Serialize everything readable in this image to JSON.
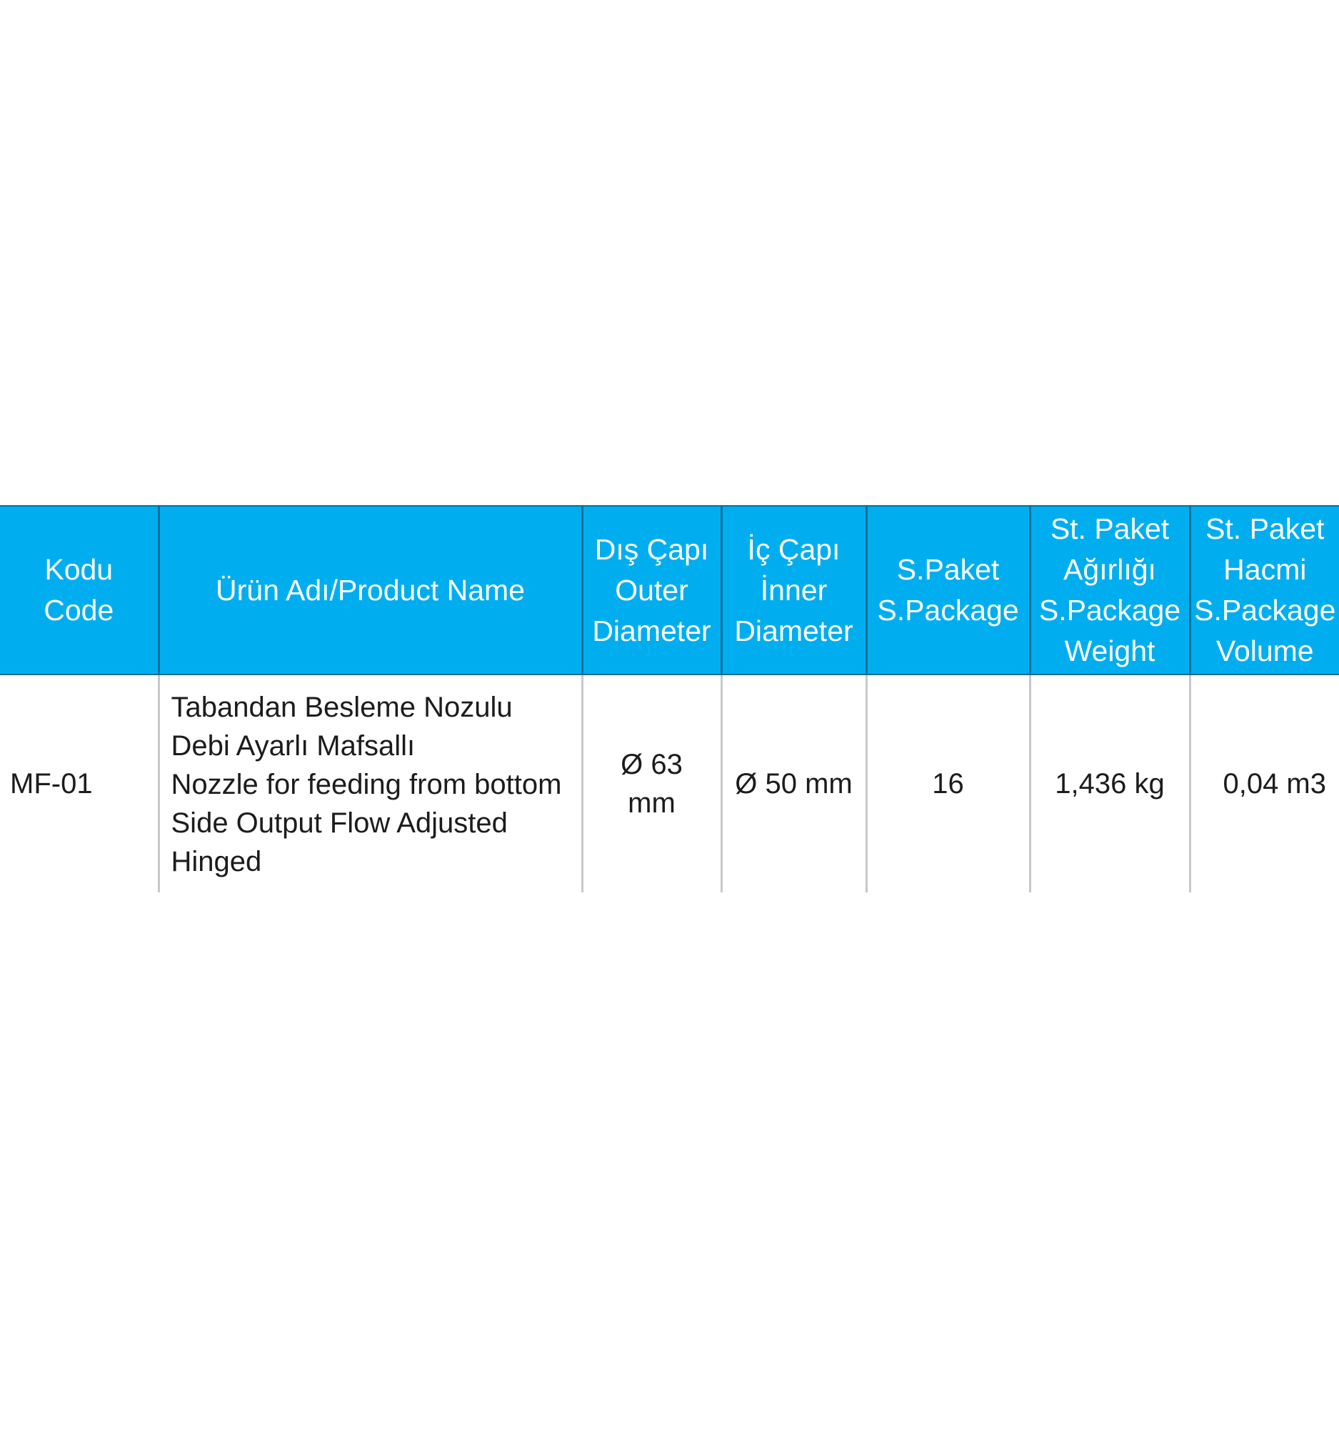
{
  "table": {
    "headers": {
      "code": [
        "Kodu",
        "Code"
      ],
      "name": [
        "Ürün Adı/Product Name"
      ],
      "outer_diameter": [
        "Dış Çapı",
        "Outer",
        "Diameter"
      ],
      "inner_diameter": [
        "İç Çapı",
        "İnner",
        "Diameter"
      ],
      "package": [
        "S.Paket",
        "S.Package"
      ],
      "package_weight": [
        "St. Paket",
        "Ağırlığı",
        "S.Package",
        "Weight"
      ],
      "package_volume": [
        "St. Paket",
        "Hacmi",
        "S.Package",
        "Volume"
      ]
    },
    "rows": [
      {
        "code": "MF-01",
        "name": [
          "Tabandan Besleme Nozulu",
          "Debi Ayarlı Mafsallı",
          "Nozzle for feeding from bottom",
          "Side Output Flow Adjusted",
          "Hinged"
        ],
        "outer_diameter": [
          "Ø 63",
          "mm"
        ],
        "inner_diameter": "Ø 50 mm",
        "package": "16",
        "package_weight": "1,436 kg",
        "package_volume": "0,04 m3"
      }
    ]
  }
}
